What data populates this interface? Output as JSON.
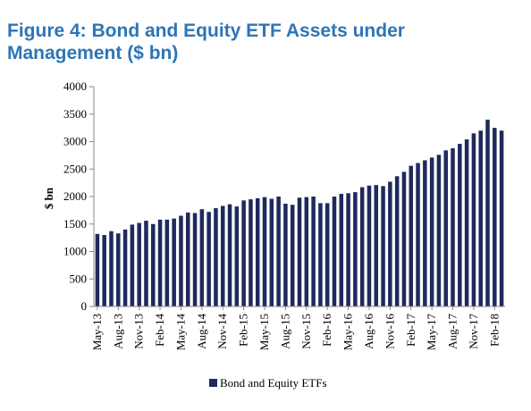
{
  "chart_data": {
    "type": "bar",
    "title_line1": "Figure 4: Bond and Equity ETF Assets under",
    "title_line2": "Management ($ bn)",
    "xlabel": "",
    "ylabel": "$ bn",
    "ylim": [
      0,
      4000
    ],
    "yticks": [
      0,
      500,
      1000,
      1500,
      2000,
      2500,
      3000,
      3500,
      4000
    ],
    "grid": false,
    "legend_position": "bottom",
    "bar_color": "#1f2a5c",
    "series": [
      {
        "name": "Bond and Equity ETFs",
        "values": [
          1320,
          1300,
          1370,
          1330,
          1400,
          1490,
          1520,
          1560,
          1500,
          1580,
          1580,
          1600,
          1650,
          1710,
          1700,
          1770,
          1720,
          1790,
          1830,
          1860,
          1820,
          1930,
          1950,
          1970,
          1990,
          1960,
          2000,
          1870,
          1850,
          1980,
          1990,
          2000,
          1880,
          1880,
          2000,
          2050,
          2060,
          2080,
          2170,
          2200,
          2210,
          2190,
          2270,
          2370,
          2450,
          2560,
          2610,
          2660,
          2710,
          2760,
          2840,
          2880,
          2960,
          3040,
          3150,
          3200,
          3400,
          3250,
          3200
        ]
      }
    ],
    "categories": [
      "May-13",
      "Jun-13",
      "Jul-13",
      "Aug-13",
      "Sep-13",
      "Oct-13",
      "Nov-13",
      "Dec-13",
      "Jan-14",
      "Feb-14",
      "Mar-14",
      "Apr-14",
      "May-14",
      "Jun-14",
      "Jul-14",
      "Aug-14",
      "Sep-14",
      "Oct-14",
      "Nov-14",
      "Dec-14",
      "Jan-15",
      "Feb-15",
      "Mar-15",
      "Apr-15",
      "May-15",
      "Jun-15",
      "Jul-15",
      "Aug-15",
      "Sep-15",
      "Oct-15",
      "Nov-15",
      "Dec-15",
      "Jan-16",
      "Feb-16",
      "Mar-16",
      "Apr-16",
      "May-16",
      "Jun-16",
      "Jul-16",
      "Aug-16",
      "Sep-16",
      "Oct-16",
      "Nov-16",
      "Dec-16",
      "Jan-17",
      "Feb-17",
      "Mar-17",
      "Apr-17",
      "May-17",
      "Jun-17",
      "Jul-17",
      "Aug-17",
      "Sep-17",
      "Oct-17",
      "Nov-17",
      "Dec-17",
      "Jan-18",
      "Feb-18",
      "Mar-18"
    ],
    "tick_labels": [
      "May-13",
      "Aug-13",
      "Nov-13",
      "Feb-14",
      "May-14",
      "Aug-14",
      "Nov-14",
      "Feb-15",
      "May-15",
      "Aug-15",
      "Nov-15",
      "Feb-16",
      "May-16",
      "Aug-16",
      "Nov-16",
      "Feb-17",
      "May-17",
      "Aug-17",
      "Nov-17",
      "Feb-18"
    ]
  }
}
